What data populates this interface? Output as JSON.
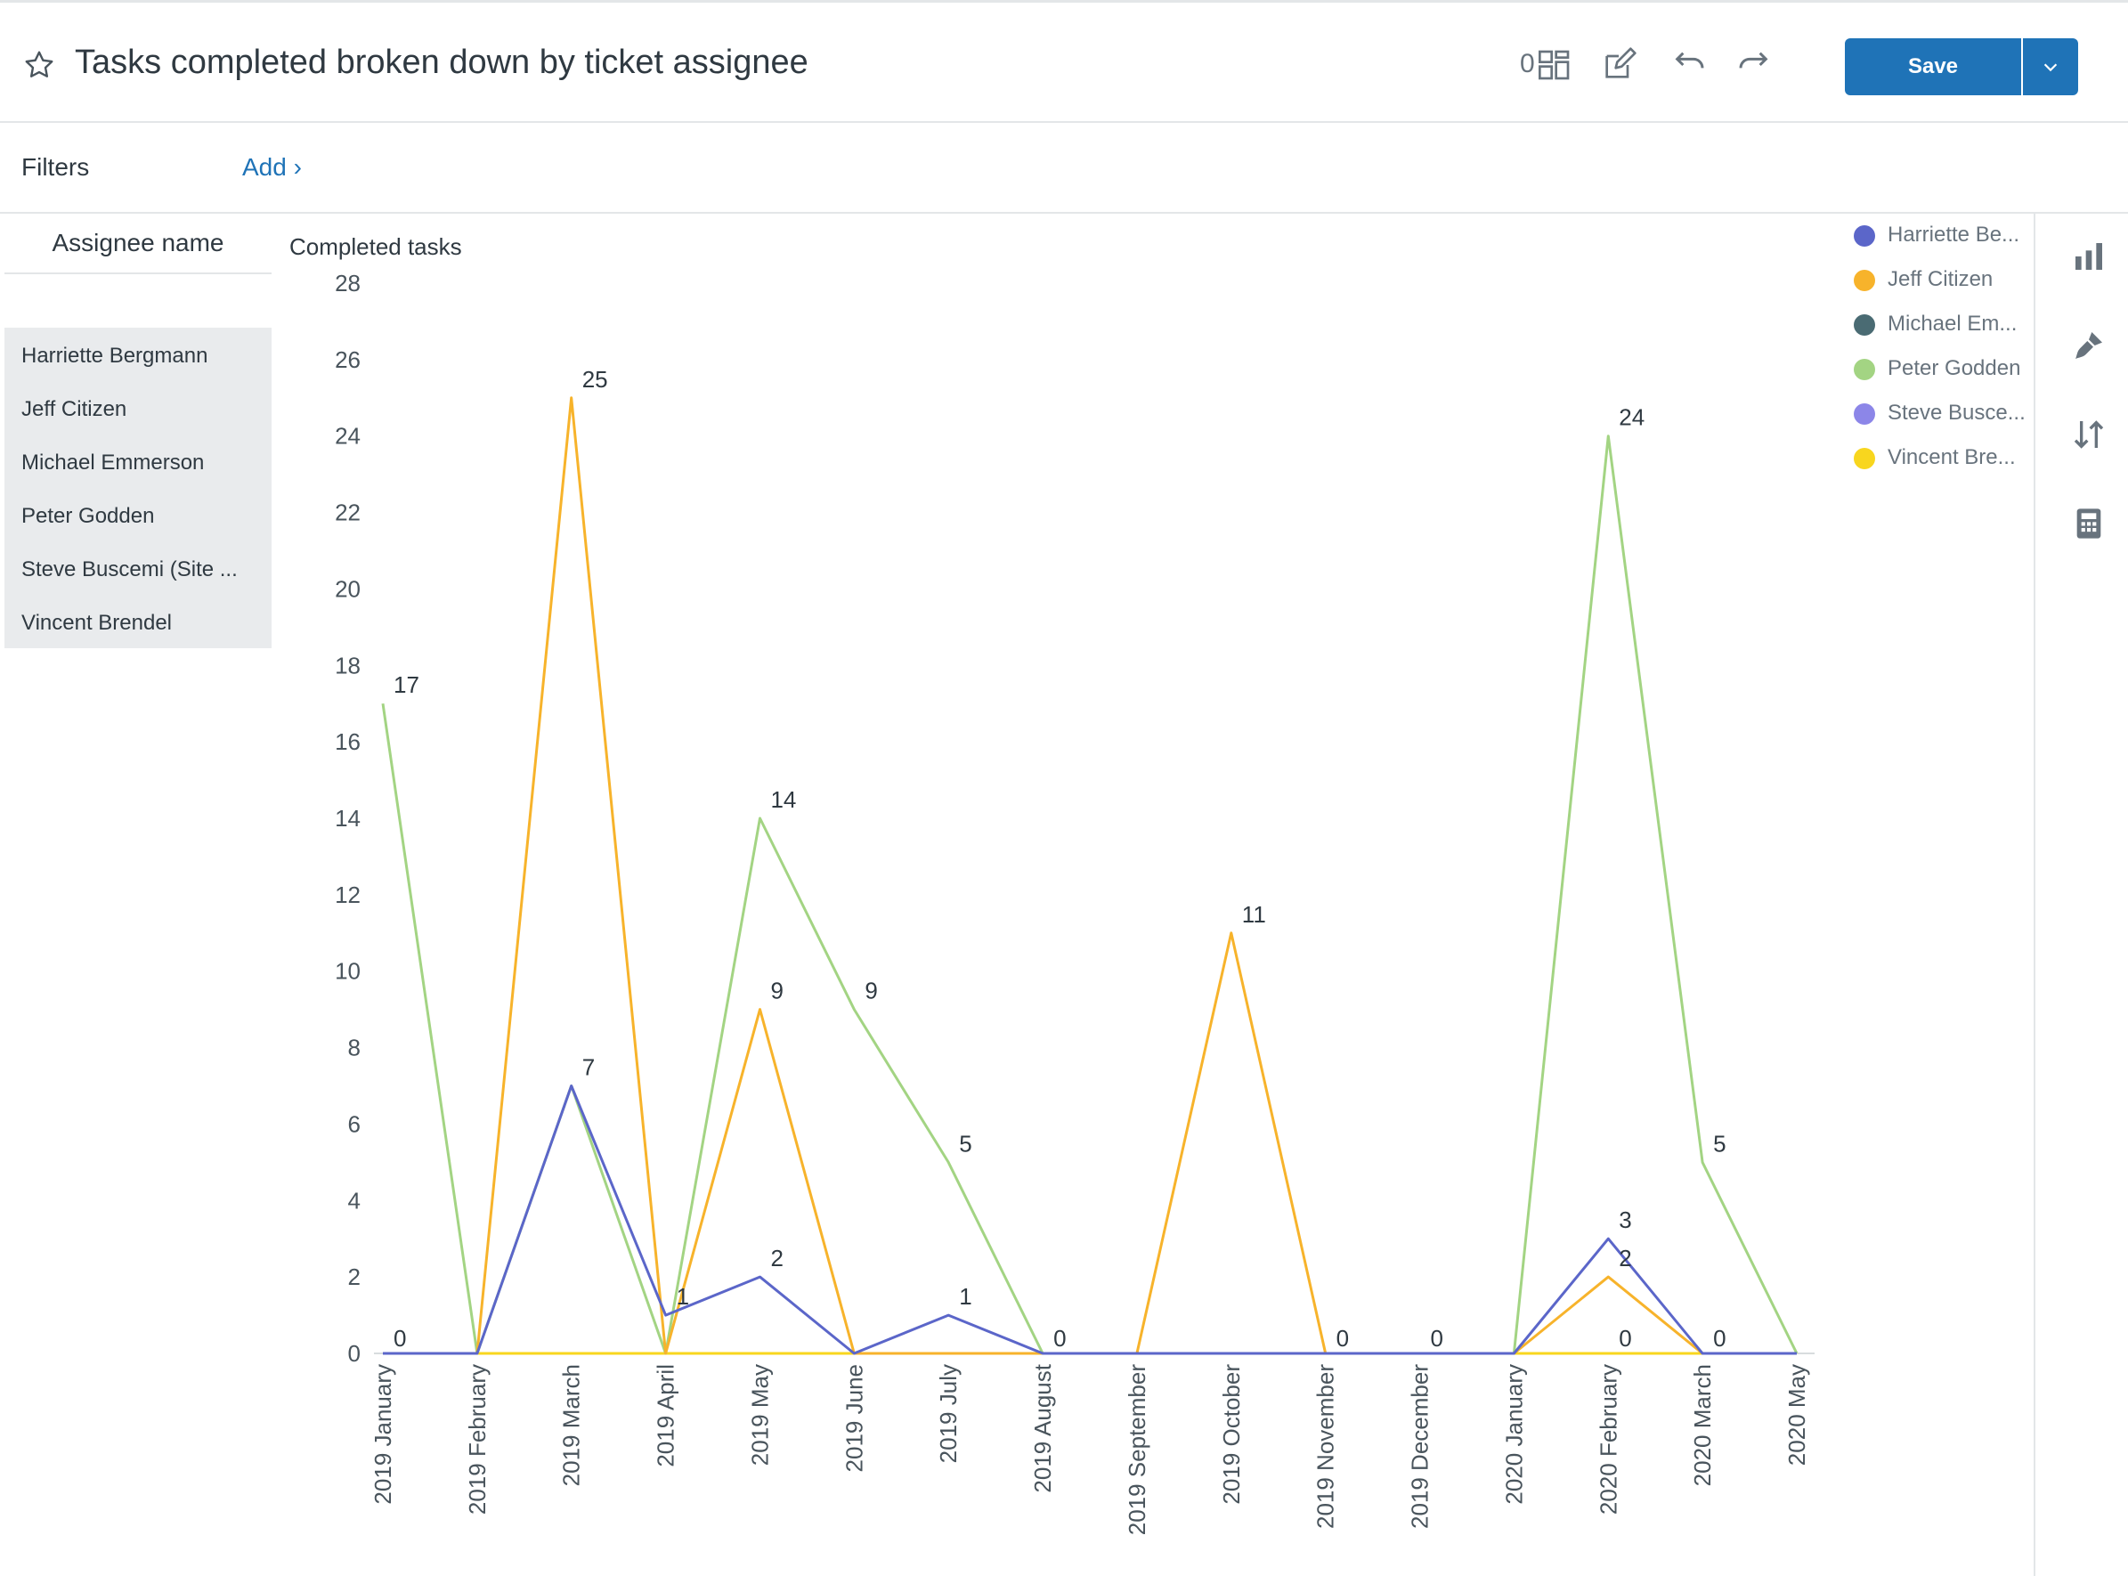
{
  "header": {
    "title": "Tasks completed broken down by ticket assignee",
    "widget_count": "0",
    "save_label": "Save"
  },
  "filters": {
    "label": "Filters",
    "add_label": "Add ›"
  },
  "assignee_panel": {
    "header": "Assignee name",
    "items": [
      "Harriette Bergmann",
      "Jeff Citizen",
      "Michael Emmerson",
      "Peter Godden",
      "Steve Buscemi (Site ...",
      "Vincent Brendel"
    ]
  },
  "legend": {
    "items": [
      {
        "label": "Harriette Be...",
        "color": "#5b66c9"
      },
      {
        "label": "Jeff Citizen",
        "color": "#f7b32b"
      },
      {
        "label": "Michael Em...",
        "color": "#4a6b73"
      },
      {
        "label": "Peter Godden",
        "color": "#a3d483"
      },
      {
        "label": "Steve Busce...",
        "color": "#8c86e8"
      },
      {
        "label": "Vincent Bre...",
        "color": "#f8d61e"
      }
    ]
  },
  "right_rail": {
    "icons": [
      "bar-chart-icon",
      "brush-icon",
      "sort-icon",
      "calculator-icon"
    ]
  },
  "chart_data": {
    "type": "line",
    "ylabel": "Completed tasks",
    "ylim": [
      0,
      28
    ],
    "yticks": [
      0,
      2,
      4,
      6,
      8,
      10,
      12,
      14,
      16,
      18,
      20,
      22,
      24,
      26,
      28
    ],
    "categories": [
      "2019 January",
      "2019 February",
      "2019 March",
      "2019 April",
      "2019 May",
      "2019 June",
      "2019 July",
      "2019 August",
      "2019 September",
      "2019 October",
      "2019 November",
      "2019 December",
      "2020 January",
      "2020 February",
      "2020 March",
      "2020 May"
    ],
    "series": [
      {
        "name": "Harriette Be...",
        "color": "#5b66c9",
        "values": [
          0,
          0,
          7,
          1,
          2,
          0,
          1,
          0,
          0,
          0,
          0,
          0,
          0,
          3,
          0,
          0
        ]
      },
      {
        "name": "Jeff Citizen",
        "color": "#f7b32b",
        "values": [
          0,
          0,
          25,
          0,
          9,
          0,
          0,
          0,
          0,
          11,
          0,
          0,
          0,
          2,
          0,
          0
        ]
      },
      {
        "name": "Michael Em...",
        "color": "#4a6b73",
        "values": [
          0,
          0,
          0,
          0,
          0,
          0,
          0,
          0,
          0,
          0,
          0,
          0,
          0,
          0,
          0,
          0
        ]
      },
      {
        "name": "Peter Godden",
        "color": "#a3d483",
        "values": [
          17,
          0,
          7,
          0,
          14,
          9,
          5,
          0,
          0,
          0,
          0,
          0,
          0,
          24,
          5,
          0
        ]
      },
      {
        "name": "Steve Busce...",
        "color": "#8c86e8",
        "values": [
          0,
          0,
          0,
          0,
          0,
          0,
          0,
          0,
          0,
          0,
          0,
          0,
          0,
          0,
          0,
          0
        ]
      },
      {
        "name": "Vincent Bre...",
        "color": "#f8d61e",
        "values": [
          0,
          0,
          0,
          0,
          0,
          0,
          0,
          0,
          0,
          0,
          0,
          0,
          0,
          0,
          0,
          0
        ]
      }
    ],
    "data_labels": [
      {
        "category": "2019 January",
        "value": 17,
        "text": "17"
      },
      {
        "category": "2019 January",
        "value": 0,
        "text": "0"
      },
      {
        "category": "2019 March",
        "value": 25,
        "text": "25"
      },
      {
        "category": "2019 March",
        "value": 7,
        "text": "7"
      },
      {
        "category": "2019 April",
        "value": 1,
        "text": "1"
      },
      {
        "category": "2019 May",
        "value": 14,
        "text": "14"
      },
      {
        "category": "2019 May",
        "value": 9,
        "text": "9"
      },
      {
        "category": "2019 May",
        "value": 2,
        "text": "2"
      },
      {
        "category": "2019 June",
        "value": 9,
        "text": "9"
      },
      {
        "category": "2019 July",
        "value": 5,
        "text": "5"
      },
      {
        "category": "2019 July",
        "value": 1,
        "text": "1"
      },
      {
        "category": "2019 August",
        "value": 0,
        "text": "0"
      },
      {
        "category": "2019 October",
        "value": 11,
        "text": "11"
      },
      {
        "category": "2019 November",
        "value": 0,
        "text": "0"
      },
      {
        "category": "2019 December",
        "value": 0,
        "text": "0"
      },
      {
        "category": "2020 February",
        "value": 24,
        "text": "24"
      },
      {
        "category": "2020 February",
        "value": 3,
        "text": "3"
      },
      {
        "category": "2020 February",
        "value": 2,
        "text": "2"
      },
      {
        "category": "2020 February",
        "value": 0,
        "text": "0"
      },
      {
        "category": "2020 March",
        "value": 5,
        "text": "5"
      },
      {
        "category": "2020 March",
        "value": 0,
        "text": "0"
      }
    ],
    "grid": false,
    "legend_position": "top-right"
  }
}
